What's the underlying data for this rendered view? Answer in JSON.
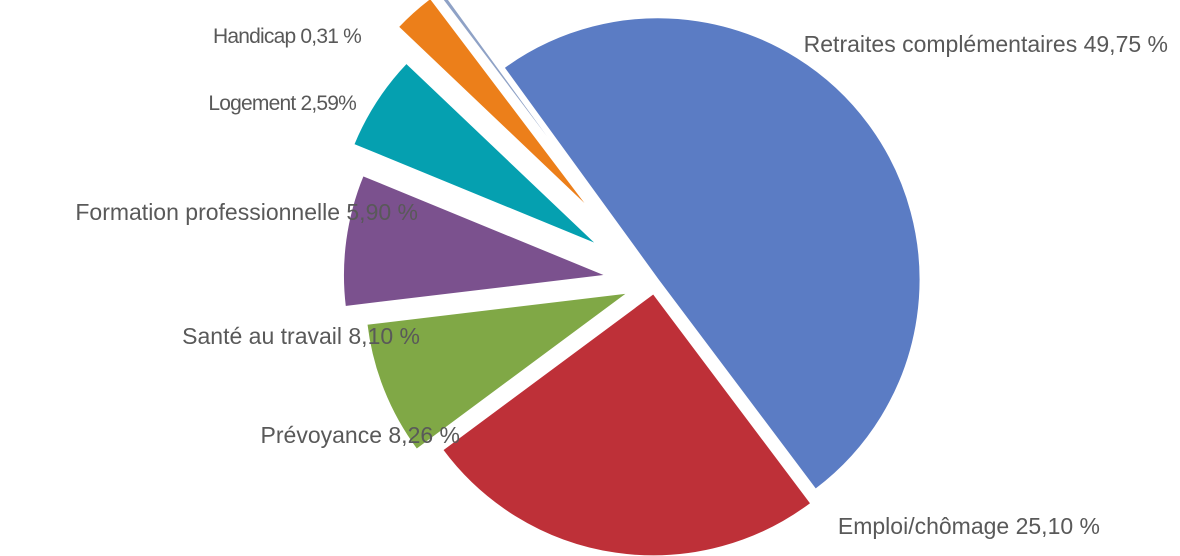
{
  "chart_data": {
    "type": "pie",
    "exploded": true,
    "legend": "none",
    "title": "",
    "slices": [
      {
        "label": "Retraites complémentaires 49,75 %",
        "category": "Retraites complémentaires",
        "value": 49.75,
        "color": "#5B7CC4"
      },
      {
        "label": "Emploi/chômage 25,10 %",
        "category": "Emploi/chômage",
        "value": 25.1,
        "color": "#BE3038"
      },
      {
        "label": "Prévoyance 8,26 %",
        "category": "Prévoyance",
        "value": 8.26,
        "color": "#80A846"
      },
      {
        "label": "Santé au travail 8,10 %",
        "category": "Santé au travail",
        "value": 8.1,
        "color": "#7B518E"
      },
      {
        "label": "Formation professionnelle 5,90 %",
        "category": "Formation professionnelle",
        "value": 5.9,
        "color": "#05A0B0"
      },
      {
        "label": "Logement 2,59%",
        "category": "Logement",
        "value": 2.59,
        "color": "#EC7F1A"
      },
      {
        "label": "Handicap 0,31 %",
        "category": "Handicap",
        "value": 0.31,
        "color": "#8FA2C6"
      }
    ]
  }
}
